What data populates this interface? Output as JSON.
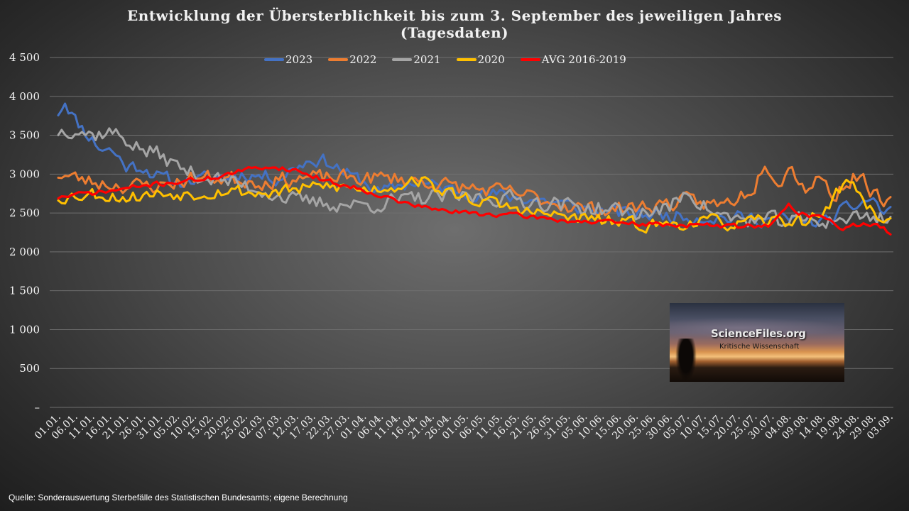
{
  "colors": {
    "series_2023": "#4472c4",
    "series_2022": "#ed7d31",
    "series_2021": "#a5a5a5",
    "series_2020": "#ffc000",
    "series_avg": "#ff0000",
    "grid": "#6f6f6f",
    "text": "#f2f2f2"
  },
  "logo": {
    "name": "ScienceFiles.org",
    "subtitle": "Kritische Wissenschaft"
  },
  "source": "Quelle: Sonderauswertung Sterbefälle des Statistischen Bundesamts; eigene Berechnung",
  "chart_data": {
    "type": "line",
    "title": "Entwicklung der Übersterblichkeit bis zum 3. September des jeweiligen Jahres (Tagesdaten)",
    "title_lines": [
      "Entwicklung der Übersterblichkeit bis zum 3. September des jeweiligen Jahres",
      "(Tagesdaten)"
    ],
    "xlabel": "",
    "ylabel": "",
    "ylim": [
      0,
      4500
    ],
    "yticks": [
      0,
      500,
      1000,
      1500,
      2000,
      2500,
      3000,
      3500,
      4000,
      4500
    ],
    "ytick_labels": [
      "–",
      "500",
      "1 000",
      "1 500",
      "2 000",
      "2 500",
      "3 000",
      "3 500",
      "4 000",
      "4 500"
    ],
    "grid": true,
    "legend_position": "top-center",
    "num_days": 246,
    "x_tick_labels": [
      "01.01.",
      "06.01.",
      "11.01.",
      "16.01.",
      "21.01.",
      "26.01.",
      "31.01.",
      "05.02.",
      "10.02.",
      "15.02.",
      "20.02.",
      "25.02.",
      "02.03.",
      "07.03.",
      "12.03.",
      "17.03.",
      "22.03.",
      "27.03.",
      "01.04.",
      "06.04.",
      "11.04.",
      "16.04.",
      "21.04.",
      "26.04.",
      "01.05.",
      "06.05.",
      "11.05.",
      "16.05.",
      "21.05.",
      "26.05.",
      "31.05.",
      "05.06.",
      "10.06.",
      "15.06.",
      "20.06.",
      "25.06.",
      "30.06.",
      "05.07.",
      "10.07.",
      "15.07.",
      "20.07.",
      "25.07.",
      "30.07.",
      "04.08.",
      "09.08.",
      "14.08.",
      "19.08.",
      "24.08.",
      "29.08.",
      "03.09."
    ],
    "series": [
      {
        "name": "2023",
        "color": "#4472c4",
        "anchors": [
          [
            0,
            3800
          ],
          [
            2,
            3950
          ],
          [
            5,
            3700
          ],
          [
            8,
            3550
          ],
          [
            12,
            3350
          ],
          [
            16,
            3300
          ],
          [
            20,
            3100
          ],
          [
            25,
            3100
          ],
          [
            30,
            2950
          ],
          [
            35,
            2900
          ],
          [
            45,
            2950
          ],
          [
            55,
            3000
          ],
          [
            65,
            2950
          ],
          [
            70,
            3100
          ],
          [
            75,
            3200
          ],
          [
            80,
            3150
          ],
          [
            85,
            3000
          ],
          [
            90,
            2900
          ],
          [
            95,
            2750
          ],
          [
            100,
            2850
          ],
          [
            105,
            2900
          ],
          [
            110,
            2850
          ],
          [
            115,
            2800
          ],
          [
            125,
            2750
          ],
          [
            135,
            2700
          ],
          [
            145,
            2650
          ],
          [
            150,
            2600
          ],
          [
            155,
            2560
          ],
          [
            160,
            2520
          ],
          [
            165,
            2500
          ],
          [
            175,
            2480
          ],
          [
            185,
            2460
          ],
          [
            195,
            2440
          ],
          [
            205,
            2430
          ],
          [
            212,
            2420
          ],
          [
            220,
            2400
          ],
          [
            226,
            2380
          ],
          [
            230,
            2500
          ],
          [
            235,
            2600
          ],
          [
            240,
            2700
          ],
          [
            242,
            2500
          ],
          [
            245,
            2550
          ]
        ],
        "noise": 130,
        "seed": 11
      },
      {
        "name": "2022",
        "color": "#ed7d31",
        "anchors": [
          [
            0,
            3000
          ],
          [
            10,
            2900
          ],
          [
            20,
            2850
          ],
          [
            30,
            2850
          ],
          [
            40,
            2950
          ],
          [
            50,
            2950
          ],
          [
            60,
            2900
          ],
          [
            70,
            2950
          ],
          [
            80,
            2950
          ],
          [
            90,
            2950
          ],
          [
            100,
            2950
          ],
          [
            108,
            2900
          ],
          [
            115,
            2850
          ],
          [
            125,
            2800
          ],
          [
            135,
            2750
          ],
          [
            145,
            2650
          ],
          [
            155,
            2550
          ],
          [
            165,
            2550
          ],
          [
            175,
            2600
          ],
          [
            185,
            2650
          ],
          [
            195,
            2600
          ],
          [
            200,
            2700
          ],
          [
            205,
            2850
          ],
          [
            208,
            3200
          ],
          [
            212,
            2900
          ],
          [
            216,
            3100
          ],
          [
            220,
            2800
          ],
          [
            224,
            3000
          ],
          [
            228,
            2700
          ],
          [
            232,
            2900
          ],
          [
            236,
            3000
          ],
          [
            240,
            2750
          ],
          [
            243,
            2600
          ],
          [
            245,
            2600
          ]
        ],
        "noise": 140,
        "seed": 23
      },
      {
        "name": "2021",
        "color": "#a5a5a5",
        "anchors": [
          [
            0,
            3550
          ],
          [
            5,
            3600
          ],
          [
            10,
            3500
          ],
          [
            15,
            3550
          ],
          [
            20,
            3450
          ],
          [
            25,
            3300
          ],
          [
            30,
            3250
          ],
          [
            35,
            3100
          ],
          [
            40,
            3000
          ],
          [
            50,
            2900
          ],
          [
            60,
            2800
          ],
          [
            70,
            2650
          ],
          [
            80,
            2620
          ],
          [
            90,
            2600
          ],
          [
            100,
            2650
          ],
          [
            110,
            2700
          ],
          [
            120,
            2700
          ],
          [
            130,
            2700
          ],
          [
            140,
            2650
          ],
          [
            150,
            2600
          ],
          [
            160,
            2550
          ],
          [
            170,
            2500
          ],
          [
            180,
            2550
          ],
          [
            185,
            2800
          ],
          [
            190,
            2600
          ],
          [
            195,
            2450
          ],
          [
            205,
            2400
          ],
          [
            215,
            2400
          ],
          [
            225,
            2400
          ],
          [
            235,
            2450
          ],
          [
            245,
            2450
          ]
        ],
        "noise": 150,
        "seed": 37
      },
      {
        "name": "2020",
        "color": "#ffc000",
        "anchors": [
          [
            0,
            2700
          ],
          [
            10,
            2750
          ],
          [
            20,
            2700
          ],
          [
            30,
            2750
          ],
          [
            40,
            2750
          ],
          [
            50,
            2800
          ],
          [
            60,
            2750
          ],
          [
            70,
            2800
          ],
          [
            80,
            2850
          ],
          [
            90,
            2800
          ],
          [
            100,
            2850
          ],
          [
            105,
            2950
          ],
          [
            110,
            2850
          ],
          [
            115,
            2750
          ],
          [
            120,
            2700
          ],
          [
            130,
            2600
          ],
          [
            140,
            2500
          ],
          [
            150,
            2450
          ],
          [
            160,
            2400
          ],
          [
            170,
            2350
          ],
          [
            180,
            2350
          ],
          [
            190,
            2400
          ],
          [
            200,
            2350
          ],
          [
            210,
            2400
          ],
          [
            220,
            2400
          ],
          [
            225,
            2500
          ],
          [
            230,
            2800
          ],
          [
            233,
            2950
          ],
          [
            236,
            2700
          ],
          [
            240,
            2500
          ],
          [
            245,
            2400
          ]
        ],
        "noise": 120,
        "seed": 53
      },
      {
        "name": "AVG 2016-2019",
        "color": "#ff0000",
        "anchors": [
          [
            0,
            2700
          ],
          [
            8,
            2750
          ],
          [
            15,
            2780
          ],
          [
            25,
            2850
          ],
          [
            35,
            2900
          ],
          [
            45,
            2950
          ],
          [
            55,
            3050
          ],
          [
            62,
            3100
          ],
          [
            70,
            3050
          ],
          [
            80,
            2900
          ],
          [
            90,
            2800
          ],
          [
            100,
            2650
          ],
          [
            110,
            2550
          ],
          [
            120,
            2500
          ],
          [
            130,
            2480
          ],
          [
            140,
            2450
          ],
          [
            150,
            2400
          ],
          [
            160,
            2380
          ],
          [
            170,
            2360
          ],
          [
            180,
            2350
          ],
          [
            190,
            2340
          ],
          [
            200,
            2330
          ],
          [
            210,
            2350
          ],
          [
            215,
            2600
          ],
          [
            218,
            2500
          ],
          [
            225,
            2450
          ],
          [
            230,
            2300
          ],
          [
            235,
            2350
          ],
          [
            240,
            2350
          ],
          [
            245,
            2250
          ]
        ],
        "noise": 45,
        "seed": 71
      }
    ]
  }
}
